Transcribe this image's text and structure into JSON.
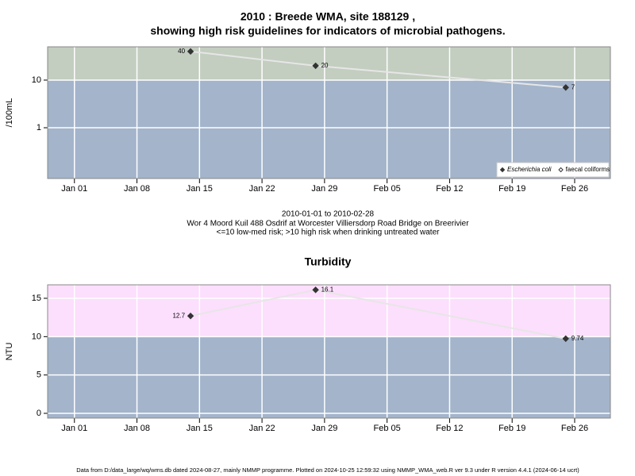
{
  "chart_data": [
    {
      "type": "line",
      "title": [
        "2010 : Breede WMA, site 188129 ,",
        "showing high risk guidelines for indicators of microbial pathogens."
      ],
      "ylabel": "/100mL",
      "ylog": true,
      "ylim": [
        0.086,
        50
      ],
      "yticks": [
        1,
        10
      ],
      "xlim": [
        "2009-12-29",
        "2010-03-02"
      ],
      "xticks": [
        {
          "value": "2010-01-01",
          "label": "Jan 01"
        },
        {
          "value": "2010-01-08",
          "label": "Jan 08"
        },
        {
          "value": "2010-01-15",
          "label": "Jan 15"
        },
        {
          "value": "2010-01-22",
          "label": "Jan 22"
        },
        {
          "value": "2010-01-29",
          "label": "Jan 29"
        },
        {
          "value": "2010-02-05",
          "label": "Feb 05"
        },
        {
          "value": "2010-02-12",
          "label": "Feb 12"
        },
        {
          "value": "2010-02-19",
          "label": "Feb 19"
        },
        {
          "value": "2010-02-26",
          "label": "Feb 26"
        }
      ],
      "x": [
        "2010-01-14",
        "2010-01-28",
        "2010-02-25"
      ],
      "guideline": 10,
      "above_color": "#c3cdc0",
      "below_color": "#a3b4cb",
      "grid": true,
      "legend": "lower right",
      "series": [
        {
          "name": "Escherichia coli",
          "color": "#333333",
          "marker": "filled",
          "values": [
            40,
            20,
            7
          ]
        },
        {
          "name": "faecal coliforms",
          "color": "#333333",
          "marker": "open",
          "values": [
            null,
            null,
            null
          ]
        }
      ]
    },
    {
      "type": "line",
      "title": [
        "Turbidity"
      ],
      "ylabel": "NTU",
      "ylog": false,
      "ylim": [
        -0.62,
        16.76
      ],
      "yticks": [
        0,
        5,
        10,
        15
      ],
      "xlim": [
        "2009-12-29",
        "2010-03-02"
      ],
      "xticks": [
        {
          "value": "2010-01-01",
          "label": "Jan 01"
        },
        {
          "value": "2010-01-08",
          "label": "Jan 08"
        },
        {
          "value": "2010-01-15",
          "label": "Jan 15"
        },
        {
          "value": "2010-01-22",
          "label": "Jan 22"
        },
        {
          "value": "2010-01-29",
          "label": "Jan 29"
        },
        {
          "value": "2010-02-05",
          "label": "Feb 05"
        },
        {
          "value": "2010-02-12",
          "label": "Feb 12"
        },
        {
          "value": "2010-02-19",
          "label": "Feb 19"
        },
        {
          "value": "2010-02-26",
          "label": "Feb 26"
        }
      ],
      "x": [
        "2010-01-14",
        "2010-01-28",
        "2010-02-25"
      ],
      "guideline": 10,
      "above_color": "#fcdffc",
      "below_color": "#a3b4cb",
      "grid": true,
      "series": [
        {
          "name": "Turbidity",
          "color": "#333333",
          "marker": "filled",
          "values": [
            12.7,
            16.1,
            9.74
          ]
        }
      ]
    }
  ],
  "caption": [
    "2010-01-01 to 2010-02-28",
    "Wor 4 Moord Kuil 488 Osdrif at Worcester Villiersdorp Road Bridge on Breerivier",
    "<=10 low-med risk; >10 high risk when drinking untreated water"
  ],
  "footer": "Data from D:/data_large/wq/wms.db dated 2024-08-27, mainly NMMP programme. Plotted on 2024-10-25 12:59:32 using NMMP_WMA_web.R ver 9.3 under R version 4.4.1 (2024-06-14 ucrt)"
}
